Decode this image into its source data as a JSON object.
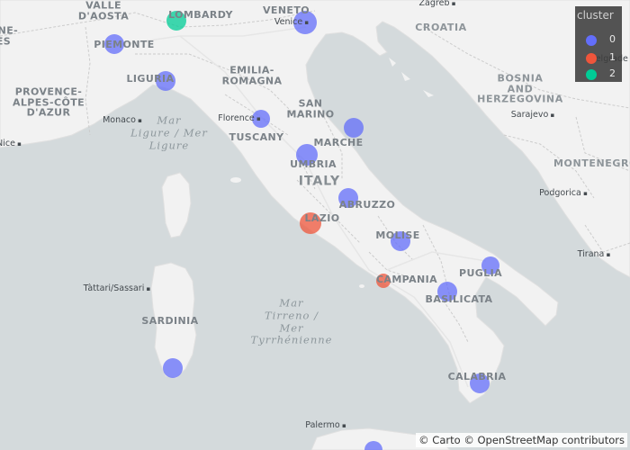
{
  "map": {
    "title_hint": "",
    "attribution": "© Carto © OpenStreetMap contributors",
    "colors": {
      "sea": "#d4dadc",
      "land": "#f2f2f2",
      "border": "#c8c8c8",
      "cluster0": "#636efa",
      "cluster1": "#ef553b",
      "cluster2": "#00cc96"
    }
  },
  "labels": {
    "regions": [
      {
        "id": "aosta",
        "text": "VALLE\nD'AOSTA"
      },
      {
        "id": "lombardy",
        "text": "LOMBARDY"
      },
      {
        "id": "veneto",
        "text": "VENETO"
      },
      {
        "id": "piemonte",
        "text": "PIEMONTE"
      },
      {
        "id": "emilia",
        "text": "EMILIA-\nROMAGNA"
      },
      {
        "id": "liguria",
        "text": "LIGURIA"
      },
      {
        "id": "sanmarino",
        "text": "SAN\nMARINO"
      },
      {
        "id": "tuscany",
        "text": "TUSCANY"
      },
      {
        "id": "marche",
        "text": "MARCHE"
      },
      {
        "id": "umbria",
        "text": "UMBRIA"
      },
      {
        "id": "abruzzo",
        "text": "ABRUZZO"
      },
      {
        "id": "lazio",
        "text": "LAZIO"
      },
      {
        "id": "molise",
        "text": "MOLISE"
      },
      {
        "id": "puglia",
        "text": "PUGLIA"
      },
      {
        "id": "campania",
        "text": "CAMPANIA"
      },
      {
        "id": "basilicata",
        "text": "BASILICATA"
      },
      {
        "id": "sardinia",
        "text": "SARDINIA"
      },
      {
        "id": "calabria",
        "text": "CALABRIA"
      },
      {
        "id": "provence",
        "text": "PROVENCE-\nALPES-CÔTE\nD'AZUR"
      },
      {
        "id": "ones",
        "text": "ONE-\nES"
      }
    ],
    "countries": [
      {
        "id": "croatia",
        "text": "CROATIA"
      },
      {
        "id": "bosnia",
        "text": "BOSNIA\nAND\nHERZEGOVINA"
      },
      {
        "id": "italy",
        "text": "ITALY"
      },
      {
        "id": "montenegro",
        "text": "MONTENEGRO"
      }
    ],
    "seas": [
      {
        "id": "ligure",
        "text": "Mar\nLigure / Mer\nLigure"
      },
      {
        "id": "tirreno",
        "text": "Mar\nTirreno /\nMer\nTyrrhénienne"
      }
    ],
    "cities": [
      {
        "id": "venice",
        "text": "Venice"
      },
      {
        "id": "monaco",
        "text": "Monaco"
      },
      {
        "id": "florence",
        "text": "Florence"
      },
      {
        "id": "sarajevo",
        "text": "Sarajevo"
      },
      {
        "id": "podgorica",
        "text": "Podgorica"
      },
      {
        "id": "tirana",
        "text": "Tirana"
      },
      {
        "id": "tattari",
        "text": "Tàttari/Sassari"
      },
      {
        "id": "palermo",
        "text": "Palermo"
      },
      {
        "id": "zagreb",
        "text": "Zagreb"
      },
      {
        "id": "belgrade",
        "text": "Belgrade"
      },
      {
        "id": "nice",
        "text": "Nice"
      }
    ]
  },
  "legend": {
    "title": "cluster",
    "items": [
      {
        "label": "0",
        "color": "#636efa"
      },
      {
        "label": "1",
        "color": "#ef553b"
      },
      {
        "label": "2",
        "color": "#00cc96"
      }
    ]
  },
  "chart_data": {
    "type": "scatter",
    "series": [
      {
        "name": "0",
        "color": "#636efa",
        "points": [
          {
            "region": "Veneto"
          },
          {
            "region": "Piemonte"
          },
          {
            "region": "Liguria"
          },
          {
            "region": "Tuscany"
          },
          {
            "region": "Marche"
          },
          {
            "region": "Umbria"
          },
          {
            "region": "Abruzzo"
          },
          {
            "region": "Molise"
          },
          {
            "region": "Puglia"
          },
          {
            "region": "Basilicata"
          },
          {
            "region": "Calabria"
          },
          {
            "region": "Sardinia"
          },
          {
            "region": "Sicily"
          }
        ]
      },
      {
        "name": "1",
        "color": "#ef553b",
        "points": [
          {
            "region": "Lazio"
          },
          {
            "region": "Campania"
          }
        ]
      },
      {
        "name": "2",
        "color": "#00cc96",
        "points": [
          {
            "region": "Lombardy"
          }
        ]
      }
    ]
  }
}
